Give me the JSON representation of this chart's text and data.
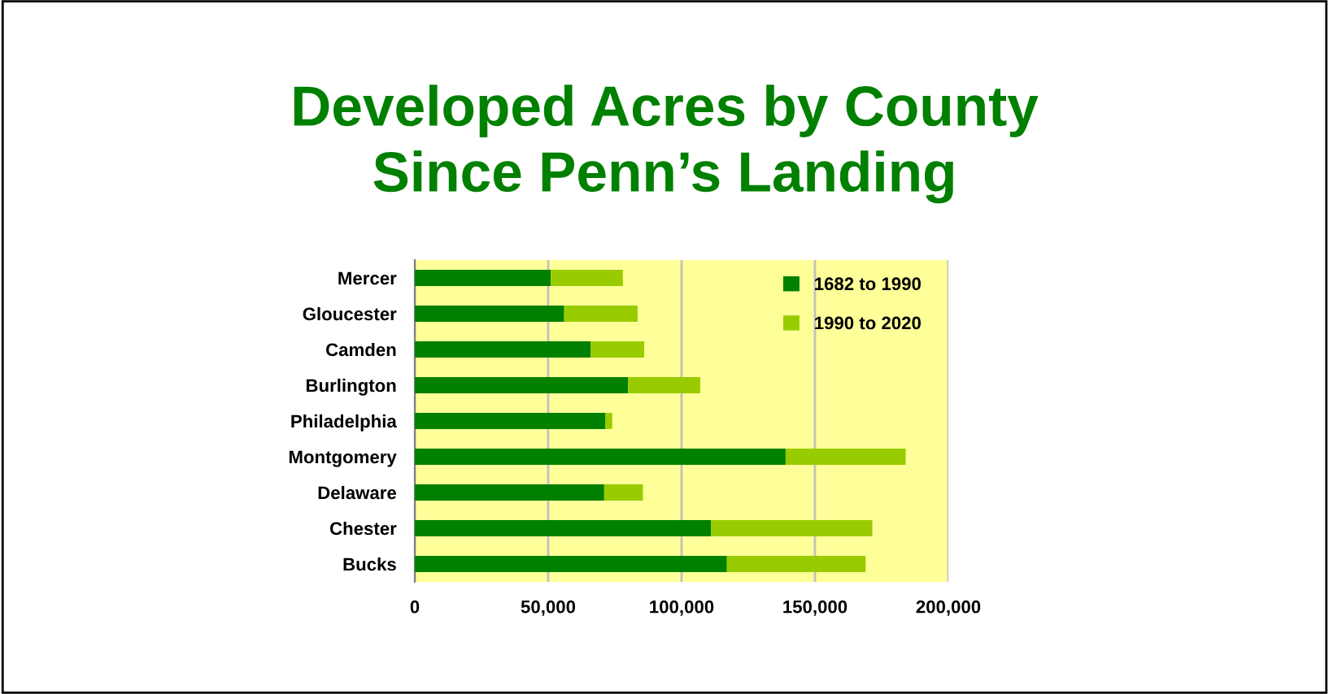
{
  "chart_data": {
    "type": "bar",
    "orientation": "horizontal",
    "stacked": true,
    "title": "Developed Acres by County",
    "subtitle": "Since Penn’s Landing",
    "categories": [
      "Mercer",
      "Gloucester",
      "Camden",
      "Burlington",
      "Philadelphia",
      "Montgomery",
      "Delaware",
      "Chester",
      "Bucks"
    ],
    "series": [
      {
        "name": "1682 to 1990",
        "color": "#008000",
        "values": [
          51000,
          56000,
          66000,
          80000,
          71500,
          139000,
          71000,
          111000,
          117000
        ]
      },
      {
        "name": "1990 to 2020",
        "color": "#99cc00",
        "values": [
          27000,
          27500,
          20000,
          27000,
          2500,
          45000,
          14500,
          60500,
          52000
        ]
      }
    ],
    "xlim": [
      0,
      200000
    ],
    "xticks": [
      0,
      {
        "value": 50000,
        "label": "50,000"
      },
      {
        "value": 100000,
        "label": "100,000"
      },
      {
        "value": 150000,
        "label": "150,000"
      },
      {
        "value": 200000,
        "label": "200,000"
      }
    ],
    "grid": "x",
    "legend": "top right"
  }
}
